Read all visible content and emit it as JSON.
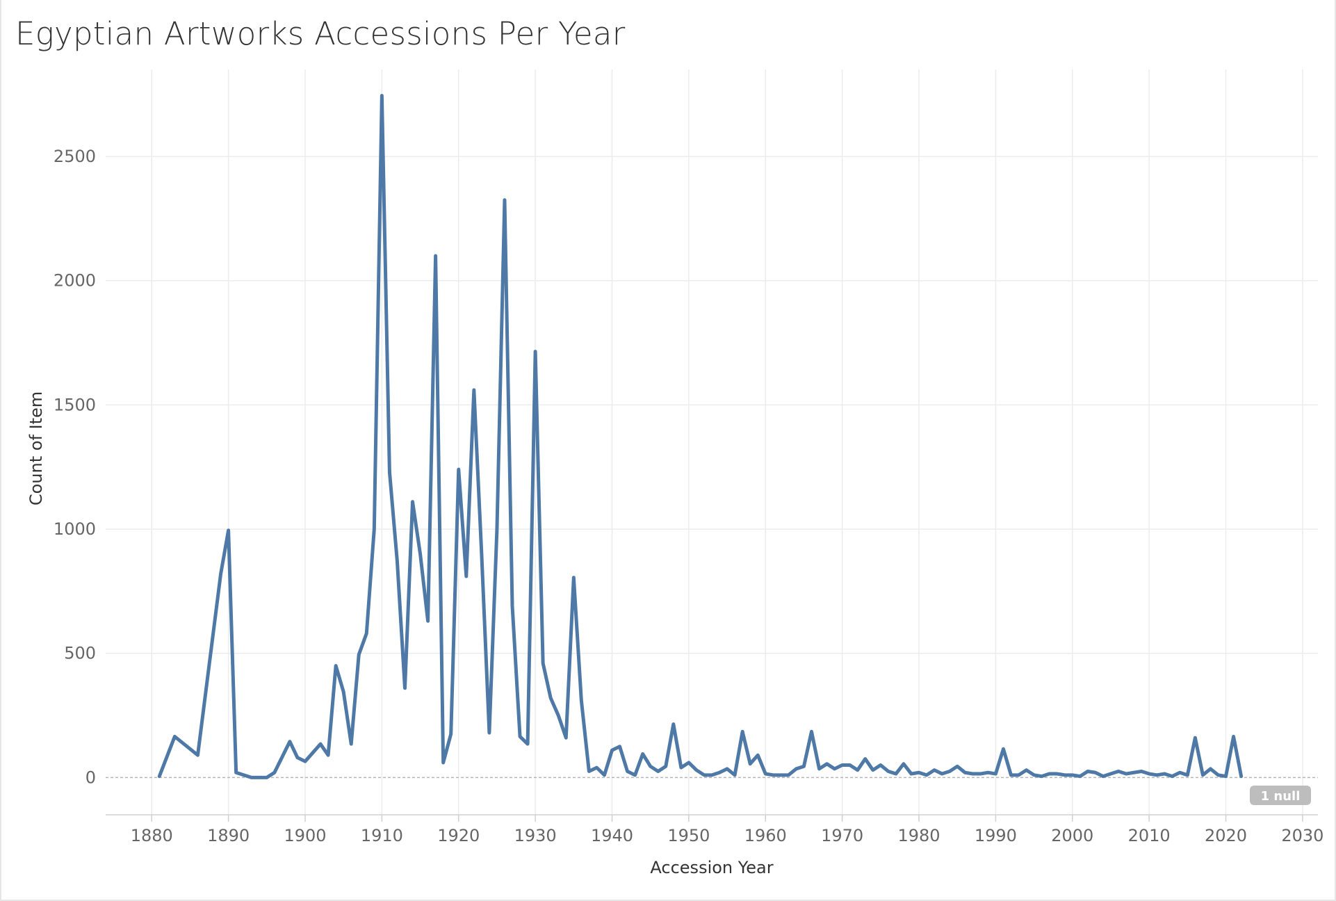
{
  "title": "Egyptian Artworks Accessions Per Year",
  "null_badge": "1 null",
  "colors": {
    "line": "#4e79a7",
    "grid": "#ececec",
    "zero_line": "#b5b5b5",
    "null_badge": "#bdbdbd"
  },
  "chart_data": {
    "type": "line",
    "title": "Egyptian Artworks Accessions Per Year",
    "xlabel": "Accession Year",
    "ylabel": "Count of Item",
    "xlim": [
      1874,
      2032
    ],
    "ylim": [
      -150,
      2850
    ],
    "x_ticks": [
      1880,
      1890,
      1900,
      1910,
      1920,
      1930,
      1940,
      1950,
      1960,
      1970,
      1980,
      1990,
      2000,
      2010,
      2020,
      2030
    ],
    "y_ticks": [
      0,
      500,
      1000,
      1500,
      2000,
      2500
    ],
    "grid": true,
    "series": [
      {
        "x": [
          1881,
          1883,
          1886,
          1889,
          1890,
          1891,
          1893,
          1895,
          1896,
          1898,
          1899,
          1900,
          1902,
          1903,
          1904,
          1905,
          1906,
          1907,
          1908,
          1909,
          1910,
          1911,
          1912,
          1913,
          1914,
          1915,
          1916,
          1917,
          1918,
          1919,
          1920,
          1921,
          1922,
          1923,
          1924,
          1925,
          1926,
          1927,
          1928,
          1929,
          1930,
          1931,
          1932,
          1933,
          1934,
          1935,
          1936,
          1937,
          1938,
          1939,
          1940,
          1941,
          1942,
          1943,
          1944,
          1945,
          1946,
          1947,
          1948,
          1949,
          1950,
          1951,
          1952,
          1953,
          1954,
          1955,
          1956,
          1957,
          1958,
          1959,
          1960,
          1961,
          1962,
          1963,
          1964,
          1965,
          1966,
          1967,
          1968,
          1969,
          1970,
          1971,
          1972,
          1973,
          1974,
          1975,
          1976,
          1977,
          1978,
          1979,
          1980,
          1981,
          1982,
          1983,
          1984,
          1985,
          1986,
          1987,
          1988,
          1989,
          1990,
          1991,
          1992,
          1993,
          1994,
          1995,
          1996,
          1997,
          1998,
          1999,
          2000,
          2001,
          2002,
          2003,
          2004,
          2005,
          2006,
          2007,
          2008,
          2009,
          2010,
          2011,
          2012,
          2013,
          2014,
          2015,
          2016,
          2017,
          2018,
          2019,
          2020,
          2021,
          2022
        ],
        "values": [
          5,
          165,
          90,
          820,
          995,
          20,
          0,
          0,
          20,
          145,
          80,
          65,
          135,
          90,
          450,
          345,
          135,
          495,
          580,
          1000,
          2745,
          1230,
          870,
          360,
          1110,
          900,
          630,
          2100,
          60,
          175,
          1240,
          810,
          1560,
          900,
          180,
          1000,
          2325,
          690,
          165,
          135,
          1715,
          460,
          320,
          250,
          160,
          805,
          310,
          25,
          40,
          10,
          110,
          125,
          25,
          10,
          95,
          45,
          25,
          45,
          215,
          40,
          60,
          30,
          10,
          10,
          20,
          35,
          10,
          185,
          55,
          90,
          15,
          10,
          10,
          10,
          35,
          45,
          185,
          35,
          55,
          35,
          50,
          50,
          30,
          75,
          30,
          50,
          25,
          15,
          55,
          15,
          20,
          10,
          30,
          15,
          25,
          45,
          20,
          15,
          15,
          20,
          15,
          115,
          10,
          10,
          30,
          10,
          5,
          15,
          15,
          10,
          10,
          5,
          25,
          20,
          5,
          15,
          25,
          15,
          20,
          25,
          15,
          10,
          15,
          5,
          20,
          10,
          160,
          10,
          35,
          10,
          5,
          165,
          5
        ]
      }
    ]
  }
}
